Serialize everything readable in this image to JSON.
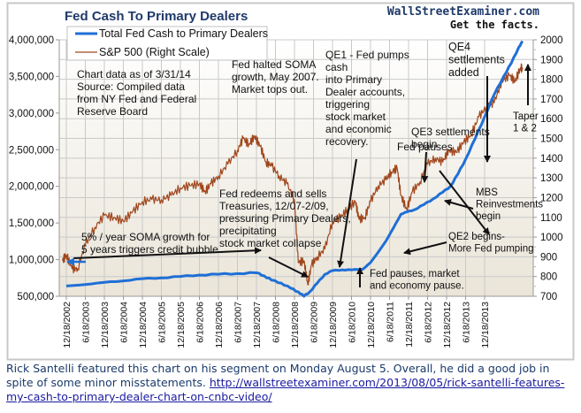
{
  "chart_data": {
    "type": "line",
    "title": "Fed Cash To Primary Dealers",
    "watermark": {
      "site": "WallStreetExaminer.com",
      "tagline": "Get the facts."
    },
    "legend": {
      "placement": "top-left",
      "entries": [
        {
          "name": "Total Fed Cash to Primary Dealers",
          "color": "#1f6fd6"
        },
        {
          "name": "S&P 500 (Right Scale)",
          "color": "#a0461c"
        }
      ]
    },
    "x_tick_labels": [
      "12/18/2002",
      "6/18/2003",
      "12/18/2003",
      "6/18/2004",
      "12/18/2004",
      "6/18/2005",
      "12/18/2005",
      "6/18/2006",
      "12/18/2006",
      "6/18/2007",
      "12/18/2007",
      "6/18/2008",
      "12/18/2008",
      "6/18/2009",
      "12/18/2009",
      "6/18/2010",
      "12/18/2010",
      "6/18/2011",
      "12/18/2011",
      "6/18/2012",
      "12/18/2012",
      "6/18/2013",
      "12/18/2013"
    ],
    "y_left": {
      "ylim": [
        500000,
        4000000
      ],
      "ticks": [
        "500,000",
        "1,000,000",
        "1,500,000",
        "2,000,000",
        "2,500,000",
        "3,000,000",
        "3,500,000",
        "4,000,000"
      ],
      "tick_values": [
        500000,
        1000000,
        1500000,
        2000000,
        2500000,
        3000000,
        3500000,
        4000000
      ]
    },
    "y_right": {
      "ylim": [
        700,
        2000
      ],
      "ticks": [
        "700",
        "800",
        "900",
        "1000",
        "1100",
        "1200",
        "1300",
        "1400",
        "1500",
        "1600",
        "1700",
        "1800",
        "1900",
        "2000"
      ],
      "tick_values": [
        700,
        800,
        900,
        1000,
        1100,
        1200,
        1300,
        1400,
        1500,
        1600,
        1700,
        1800,
        1900,
        2000
      ]
    },
    "x_range_index": [
      0,
      23
    ],
    "grid": true,
    "series": [
      {
        "name": "Total Fed Cash to Primary Dealers",
        "axis": "left",
        "color": "#1f6fd6",
        "points": [
          [
            0,
            640000
          ],
          [
            1,
            660000
          ],
          [
            2,
            690000
          ],
          [
            3,
            710000
          ],
          [
            4,
            740000
          ],
          [
            5,
            750000
          ],
          [
            6,
            770000
          ],
          [
            7,
            790000
          ],
          [
            8,
            800000
          ],
          [
            9,
            810000
          ],
          [
            10,
            820000
          ],
          [
            10.4,
            780000
          ],
          [
            10.8,
            720000
          ],
          [
            11.3,
            680000
          ],
          [
            11.8,
            610000
          ],
          [
            12.2,
            560000
          ],
          [
            12.5,
            500000
          ],
          [
            12.8,
            560000
          ],
          [
            13.2,
            680000
          ],
          [
            13.6,
            800000
          ],
          [
            14,
            850000
          ],
          [
            14.5,
            860000
          ],
          [
            15,
            860000
          ],
          [
            15.6,
            870000
          ],
          [
            16,
            960000
          ],
          [
            16.4,
            1100000
          ],
          [
            16.8,
            1250000
          ],
          [
            17.2,
            1430000
          ],
          [
            17.6,
            1620000
          ],
          [
            17.9,
            1650000
          ],
          [
            18.3,
            1680000
          ],
          [
            18.8,
            1750000
          ],
          [
            19.3,
            1830000
          ],
          [
            19.8,
            1920000
          ],
          [
            20.2,
            2000000
          ],
          [
            20.6,
            2170000
          ],
          [
            21,
            2370000
          ],
          [
            21.5,
            2650000
          ],
          [
            22,
            2950000
          ],
          [
            22.5,
            3250000
          ],
          [
            23,
            3500000
          ],
          [
            23.4,
            3680000
          ],
          [
            23.8,
            3900000
          ],
          [
            24,
            3980000
          ]
        ]
      },
      {
        "name": "S&P 500 (Right Scale)",
        "axis": "right",
        "color": "#a0461c",
        "points": [
          [
            -0.2,
            880
          ],
          [
            0,
            910
          ],
          [
            0.3,
            840
          ],
          [
            0.6,
            840
          ],
          [
            1,
            960
          ],
          [
            1.5,
            1050
          ],
          [
            2,
            1110
          ],
          [
            2.5,
            1100
          ],
          [
            3,
            1080
          ],
          [
            3.5,
            1130
          ],
          [
            4,
            1180
          ],
          [
            4.5,
            1190
          ],
          [
            5,
            1190
          ],
          [
            5.5,
            1210
          ],
          [
            6,
            1250
          ],
          [
            6.5,
            1260
          ],
          [
            7,
            1270
          ],
          [
            7.3,
            1230
          ],
          [
            7.6,
            1270
          ],
          [
            8,
            1310
          ],
          [
            8.5,
            1370
          ],
          [
            9,
            1440
          ],
          [
            9.3,
            1500
          ],
          [
            9.6,
            1470
          ],
          [
            9.9,
            1510
          ],
          [
            10.2,
            1460
          ],
          [
            10.5,
            1380
          ],
          [
            10.8,
            1360
          ],
          [
            11.2,
            1310
          ],
          [
            11.6,
            1270
          ],
          [
            12,
            1190
          ],
          [
            12.2,
            870
          ],
          [
            12.5,
            880
          ],
          [
            12.7,
            760
          ],
          [
            12.9,
            860
          ],
          [
            13.2,
            900
          ],
          [
            13.6,
            940
          ],
          [
            14,
            1080
          ],
          [
            14.4,
            1100
          ],
          [
            14.8,
            1140
          ],
          [
            15.2,
            1180
          ],
          [
            15.4,
            1090
          ],
          [
            15.7,
            1100
          ],
          [
            16,
            1180
          ],
          [
            16.4,
            1260
          ],
          [
            16.8,
            1290
          ],
          [
            17.1,
            1330
          ],
          [
            17.4,
            1350
          ],
          [
            17.6,
            1210
          ],
          [
            17.9,
            1140
          ],
          [
            18.2,
            1230
          ],
          [
            18.6,
            1280
          ],
          [
            19,
            1370
          ],
          [
            19.4,
            1400
          ],
          [
            19.8,
            1380
          ],
          [
            20.1,
            1440
          ],
          [
            20.5,
            1430
          ],
          [
            20.9,
            1480
          ],
          [
            21.3,
            1520
          ],
          [
            21.7,
            1610
          ],
          [
            22.1,
            1660
          ],
          [
            22.5,
            1680
          ],
          [
            22.9,
            1790
          ],
          [
            23.3,
            1820
          ],
          [
            23.6,
            1790
          ],
          [
            23.9,
            1860
          ],
          [
            24,
            1850
          ]
        ]
      }
    ],
    "annotations": [
      {
        "id": "data-note",
        "lines": [
          "Chart data as of 3/31/14",
          "Source:  Compiled data",
          "from NY Fed and Federal",
          "Reserve Board"
        ]
      },
      {
        "id": "soma-halt",
        "lines": [
          "Fed halted SOMA",
          "growth, May 2007.",
          "Market tops out."
        ]
      },
      {
        "id": "qe1",
        "lines": [
          "QE1 - Fed pumps",
          "cash",
          "into Primary",
          "Dealer accounts,",
          "triggering",
          "stock market",
          "and economic",
          "recovery."
        ]
      },
      {
        "id": "qe4",
        "lines": [
          "QE4",
          "settlements",
          "added"
        ]
      },
      {
        "id": "qe3",
        "lines": [
          "QE3 settlements",
          "begin"
        ]
      },
      {
        "id": "fed-pauses-2011",
        "lines": [
          "Fed pauses"
        ]
      },
      {
        "id": "taper",
        "lines": [
          "Taper",
          "1 & 2"
        ]
      },
      {
        "id": "mbs",
        "lines": [
          "MBS",
          "Reinvestments",
          "begin"
        ]
      },
      {
        "id": "fed-redeems",
        "lines": [
          "Fed redeems and sells",
          "Treasuries, 12/07-2/09,",
          "pressuring Primary Dealers,",
          "precipitating",
          "stock market collapse"
        ]
      },
      {
        "id": "soma-growth",
        "lines": [
          "5% / year SOMA growth for",
          "5 years triggers credit bubble"
        ]
      },
      {
        "id": "qe2",
        "lines": [
          "QE2 begins-",
          "More Fed pumping"
        ]
      },
      {
        "id": "fed-pauses-2010",
        "lines": [
          "Fed pauses, market",
          "and economy pause."
        ]
      }
    ]
  },
  "caption": {
    "text": "Rick Santelli featured this chart on his segment on Monday August 5. Overall, he did a good job in spite of some minor misstatements.  ",
    "link": "http://wallstreetexaminer.com/2013/08/05/rick-santelli-features-my-cash-to-primary-dealer-chart-on-cnbc-video/"
  }
}
